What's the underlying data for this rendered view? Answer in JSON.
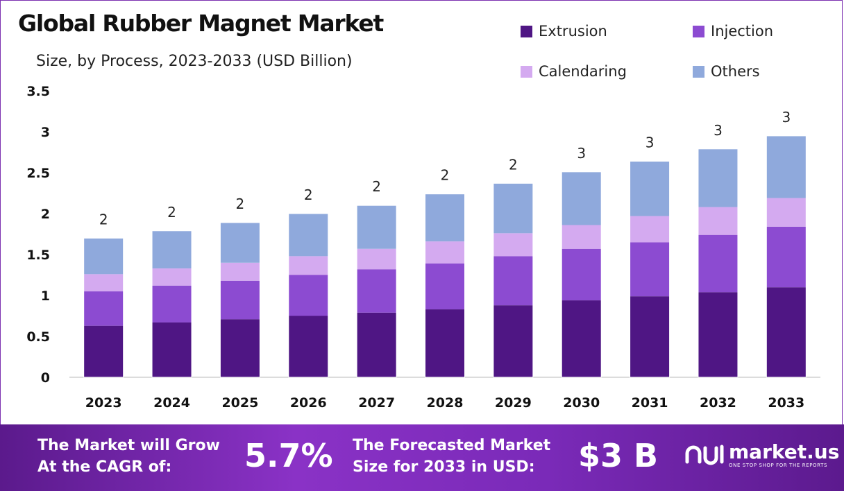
{
  "chart_data": {
    "type": "bar",
    "stacked": true,
    "title": "Global Rubber Magnet Market",
    "subtitle": "Size, by Process, 2023-2033 (USD Billion)",
    "categories": [
      "2023",
      "2024",
      "2025",
      "2026",
      "2027",
      "2028",
      "2029",
      "2030",
      "2031",
      "2032",
      "2033"
    ],
    "series": [
      {
        "name": "Extrusion",
        "color": "#4f1684",
        "values": [
          0.63,
          0.67,
          0.71,
          0.75,
          0.79,
          0.83,
          0.88,
          0.94,
          0.99,
          1.04,
          1.1
        ]
      },
      {
        "name": "Injection",
        "color": "#8c4bd1",
        "values": [
          0.42,
          0.45,
          0.47,
          0.5,
          0.53,
          0.56,
          0.6,
          0.63,
          0.66,
          0.7,
          0.74
        ]
      },
      {
        "name": "Calendaring",
        "color": "#d4aaf0",
        "values": [
          0.21,
          0.21,
          0.22,
          0.23,
          0.25,
          0.27,
          0.28,
          0.29,
          0.32,
          0.34,
          0.35
        ]
      },
      {
        "name": "Others",
        "color": "#8fa9dc",
        "values": [
          0.44,
          0.46,
          0.49,
          0.52,
          0.53,
          0.58,
          0.61,
          0.65,
          0.67,
          0.71,
          0.76
        ]
      }
    ],
    "totals_labels": [
      "2",
      "2",
      "2",
      "2",
      "2",
      "2",
      "2",
      "3",
      "3",
      "3",
      "3"
    ],
    "yticks": [
      "0",
      "0.5",
      "1",
      "1.5",
      "2",
      "2.5",
      "3",
      "3.5"
    ],
    "ylim": [
      0,
      3.5
    ],
    "grid": false,
    "legend_position": "top-right"
  },
  "footer": {
    "cagr_line1": "The Market will Grow",
    "cagr_line2": "At the CAGR of:",
    "cagr_value": "5.7%",
    "forecast_line1": "The Forecasted Market",
    "forecast_line2": "Size for 2033 in USD:",
    "forecast_value": "$3 B",
    "logo_name": "market.us",
    "logo_tagline": "ONE STOP SHOP FOR THE REPORTS"
  }
}
